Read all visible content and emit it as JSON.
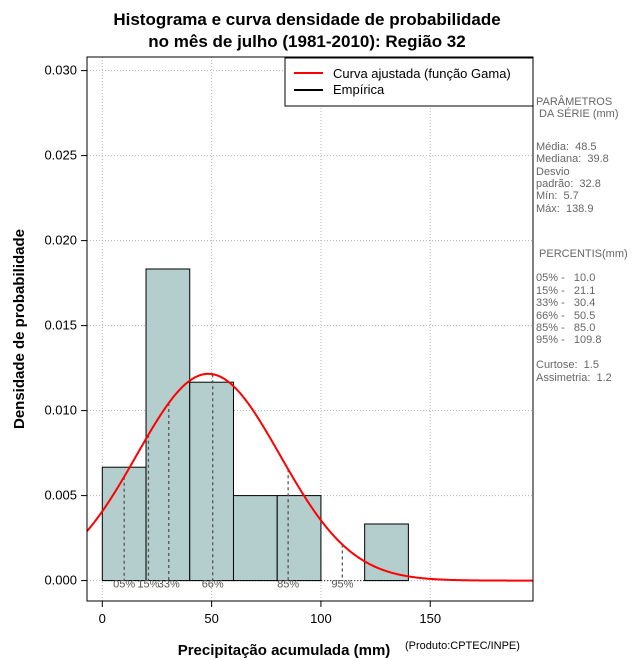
{
  "chart_data": {
    "type": "histogram",
    "title": [
      "Histograma e curva densidade de probabilidade",
      "no mês de julho (1981-2010): Região 32"
    ],
    "xlabel": "Precipitação acumulada (mm)",
    "ylabel": "Densidade de probabilidade",
    "credit": "(Produto:CPTEC/INPE)",
    "xlim": [
      -7,
      197
    ],
    "ylim": [
      -0.0012,
      0.0308
    ],
    "xticks": [
      0,
      50,
      100,
      150
    ],
    "yticks": [
      0.0,
      0.005,
      0.01,
      0.015,
      0.02,
      0.025,
      0.03
    ],
    "ytick_labels": [
      "0.000",
      "0.005",
      "0.010",
      "0.015",
      "0.020",
      "0.025",
      "0.030"
    ],
    "grid": true,
    "bins": [
      {
        "start": 0,
        "end": 20,
        "density": 0.00667
      },
      {
        "start": 20,
        "end": 40,
        "density": 0.01833
      },
      {
        "start": 40,
        "end": 60,
        "density": 0.01167
      },
      {
        "start": 60,
        "end": 80,
        "density": 0.005
      },
      {
        "start": 80,
        "end": 100,
        "density": 0.005
      },
      {
        "start": 100,
        "end": 120,
        "density": 0
      },
      {
        "start": 120,
        "end": 140,
        "density": 0.00333
      }
    ],
    "curve": {
      "name": "Curva ajustada (função Gama)",
      "mean": 48.5,
      "sd": 32.8
    },
    "legend": [
      {
        "label": "Curva ajustada (função Gama)",
        "color": "#ff0000"
      },
      {
        "label": "Empírica",
        "color": "#000000"
      }
    ],
    "legend_position": "top-right",
    "percentile_marks": [
      {
        "label": "05%",
        "value": 10.0
      },
      {
        "label": "15%",
        "value": 21.1
      },
      {
        "label": "33%",
        "value": 30.4
      },
      {
        "label": "66%",
        "value": 50.5
      },
      {
        "label": "85%",
        "value": 85.0
      },
      {
        "label": "95%",
        "value": 109.8
      }
    ],
    "colors": {
      "bar": "#b4cdcd",
      "curve": "#ff0000",
      "grid": "#b3b3b3"
    }
  },
  "side_panel": {
    "params_title": [
      "PARÂMETROS",
      " DA SÉRIE (mm)"
    ],
    "stats": [
      "Média:  48.5",
      "Mediana:  39.8",
      "Desvio",
      "padrão:  32.8",
      "Mín:  5.7",
      "Máx:  138.9"
    ],
    "percentis_title": " PERCENTIS(mm)",
    "percentis": [
      "05% -   10.0",
      "15% -   21.1",
      "33% -   30.4",
      "66% -   50.5",
      "85% -   85.0",
      "95% -   109.8"
    ],
    "shape": [
      "Curtose:  1.5",
      "Assimetria:  1.2"
    ]
  }
}
